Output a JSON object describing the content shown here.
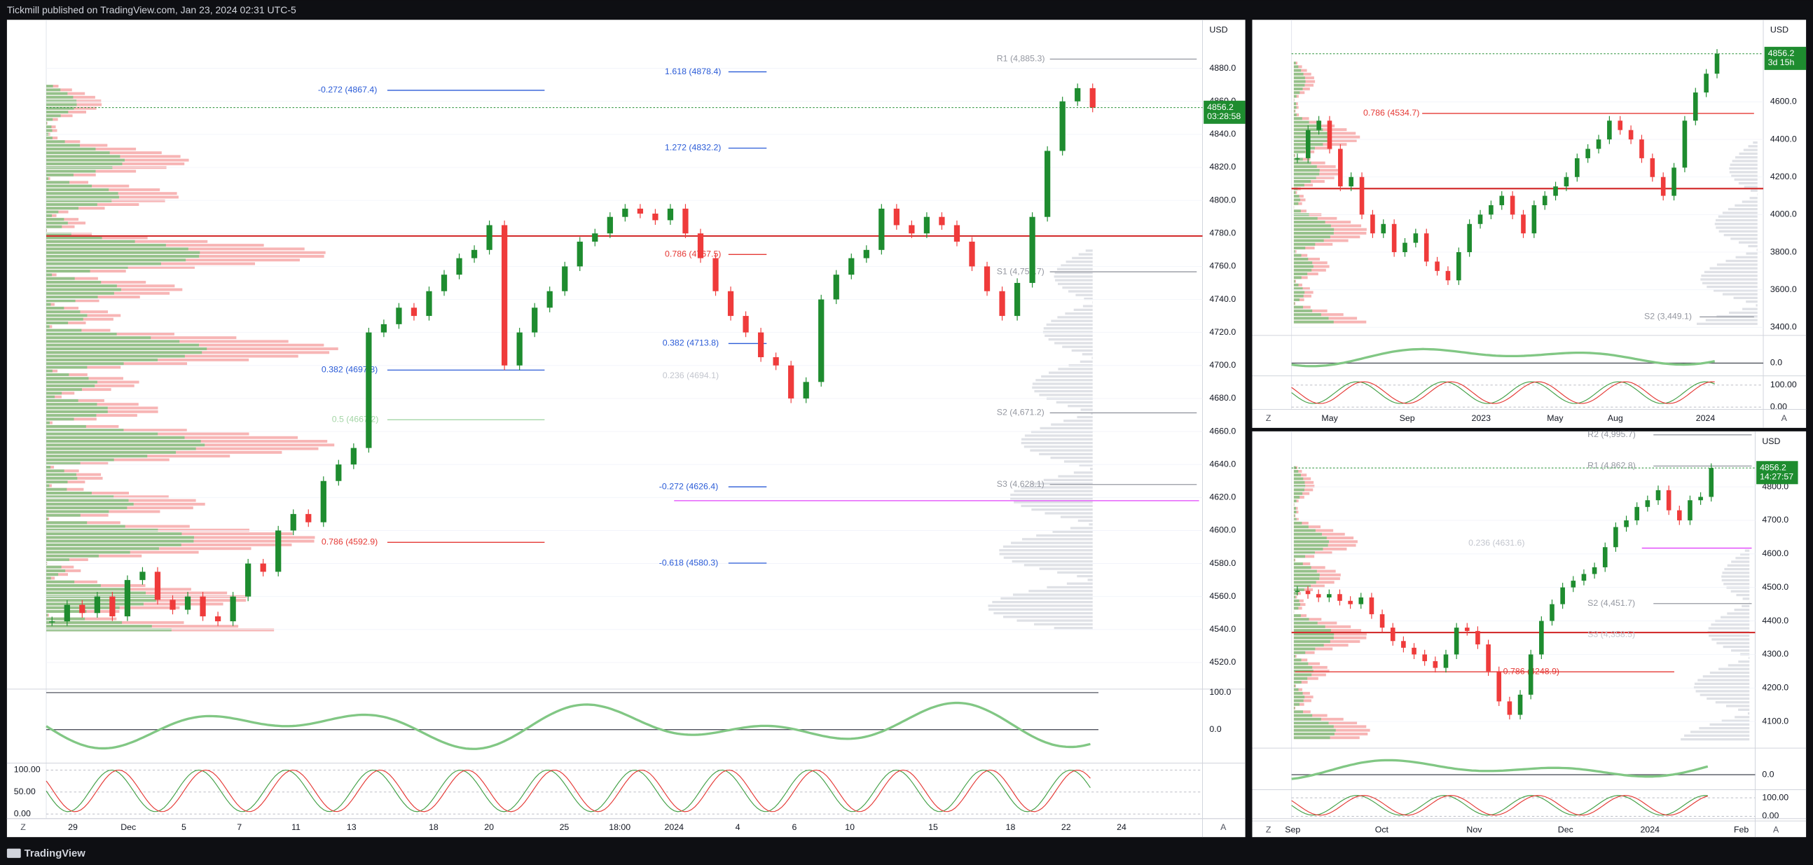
{
  "header": {
    "text": "Tickmill published on TradingView.com, Jan 23, 2024 02:31 UTC-5"
  },
  "footer": {
    "brand": "TradingView"
  },
  "colors": {
    "up": "#1e8c2f",
    "down": "#ef3b3b"
  },
  "panels": [
    {
      "currency": "USD",
      "price_label": 4856.2,
      "countdown": "03:28:58",
      "corner_left": "Z",
      "corner_right": "A",
      "price_ticks": [
        {
          "value": 4880,
          "label": "4880.0"
        },
        {
          "value": 4860,
          "label": "4860.0"
        },
        {
          "value": 4840,
          "label": "4840.0"
        },
        {
          "value": 4820,
          "label": "4820.0"
        },
        {
          "value": 4800,
          "label": "4800.0"
        },
        {
          "value": 4780,
          "label": "4780.0"
        },
        {
          "value": 4760,
          "label": "4760.0"
        },
        {
          "value": 4740,
          "label": "4740.0"
        },
        {
          "value": 4720,
          "label": "4720.0"
        },
        {
          "value": 4700,
          "label": "4700.0"
        },
        {
          "value": 4680,
          "label": "4680.0"
        },
        {
          "value": 4660,
          "label": "4660.0"
        },
        {
          "value": 4640,
          "label": "4640.0"
        },
        {
          "value": 4620,
          "label": "4620.0"
        },
        {
          "value": 4600,
          "label": "4600.0"
        },
        {
          "value": 4580,
          "label": "4580.0"
        },
        {
          "value": 4560,
          "label": "4560.0"
        },
        {
          "value": 4540,
          "label": "4540.0"
        },
        {
          "value": 4520,
          "label": "4520.0"
        }
      ],
      "osc1_ticks": [
        {
          "value": 100,
          "label": "100.0"
        },
        {
          "value": 0,
          "label": "0.0"
        }
      ],
      "osc2_ticks": [
        {
          "value": 100,
          "label": "100.00"
        },
        {
          "value": 50,
          "label": "50.00"
        },
        {
          "value": 0,
          "label": "0.00"
        }
      ],
      "time_labels": [
        "29",
        "Dec",
        "5",
        "7",
        "11",
        "13",
        "18",
        "20",
        "25",
        "18:00",
        "2024",
        "4",
        "6",
        "10",
        "15",
        "18",
        "22",
        "24"
      ],
      "levels": [
        {
          "label": "1.618 (4878.4)",
          "color": "#2a5bd7"
        },
        {
          "label": "-0.272 (4867.4)",
          "color": "#2a5bd7"
        },
        {
          "label": "1.272 (4832.2)",
          "color": "#2a5bd7"
        },
        {
          "label": "R1 (4,885.3)",
          "color": "#9598a1"
        },
        {
          "label": "0.786 (4767.5)",
          "color": "#e53935"
        },
        {
          "label": "S1 (4,756.7)",
          "color": "#9598a1"
        },
        {
          "label": "0.382 (4713.8)",
          "color": "#2a5bd7"
        },
        {
          "label": "0.382 (4697.8)",
          "color": "#2a5bd7"
        },
        {
          "label": "S2 (4,671.2)",
          "color": "#9598a1"
        },
        {
          "label": "-0.272 (4626.4)",
          "color": "#2a5bd7"
        },
        {
          "label": "S3 (4,628.1)",
          "color": "#9598a1"
        },
        {
          "label": "0.786 (4592.9)",
          "color": "#e53935"
        },
        {
          "label": "-0.618 (4580.3)",
          "color": "#2a5bd7"
        },
        {
          "label": "0.236 (4694.1)",
          "color": "#c3c6ce"
        },
        {
          "label": "0.5 (4667.2)",
          "color": "#a5d6a7"
        }
      ],
      "closes": [
        4545,
        4555,
        4550,
        4560,
        4548,
        4570,
        4575,
        4558,
        4552,
        4560,
        4548,
        4545,
        4560,
        4580,
        4575,
        4600,
        4610,
        4605,
        4630,
        4640,
        4650,
        4720,
        4725,
        4735,
        4730,
        4745,
        4755,
        4765,
        4770,
        4785,
        4700,
        4720,
        4735,
        4745,
        4760,
        4775,
        4780,
        4790,
        4795,
        4792,
        4788,
        4795,
        4780,
        4765,
        4745,
        4730,
        4720,
        4705,
        4700,
        4680,
        4690,
        4740,
        4755,
        4765,
        4770,
        4795,
        4785,
        4780,
        4790,
        4785,
        4775,
        4760,
        4745,
        4730,
        4750,
        4790,
        4830,
        4860,
        4868,
        4856.2
      ]
    },
    {
      "currency": "USD",
      "price_label": 4856.2,
      "countdown": "3d 15h",
      "corner_left": "Z",
      "corner_right": "A",
      "price_ticks": [
        {
          "value": 4600,
          "label": "4600.0"
        },
        {
          "value": 4400,
          "label": "4400.0"
        },
        {
          "value": 4200,
          "label": "4200.0"
        },
        {
          "value": 4000,
          "label": "4000.0"
        },
        {
          "value": 3800,
          "label": "3800.0"
        },
        {
          "value": 3600,
          "label": "3600.0"
        },
        {
          "value": 3400,
          "label": "3400.0"
        }
      ],
      "osc1_ticks": [
        {
          "value": 0,
          "label": "0.0"
        }
      ],
      "osc2_ticks": [
        {
          "value": 100,
          "label": "100.00"
        },
        {
          "value": 0,
          "label": "0.00"
        }
      ],
      "time_labels": [
        "May",
        "Sep",
        "2023",
        "May",
        "Aug",
        "2024"
      ],
      "levels": [
        {
          "label": "0.786 (4534.7)",
          "color": "#e53935"
        },
        {
          "label": "S2 (3,449.1)",
          "color": "#9598a1"
        }
      ],
      "closes": [
        4300,
        4450,
        4500,
        4350,
        4150,
        4200,
        4000,
        3900,
        3950,
        3800,
        3850,
        3900,
        3750,
        3700,
        3650,
        3800,
        3950,
        4000,
        4050,
        4100,
        4000,
        3900,
        4050,
        4100,
        4150,
        4200,
        4300,
        4350,
        4400,
        4500,
        4450,
        4400,
        4300,
        4200,
        4100,
        4250,
        4500,
        4650,
        4750,
        4856.2
      ]
    },
    {
      "currency": "USD",
      "price_label": 4856.2,
      "countdown": "14:27:57",
      "corner_left": "Z",
      "corner_right": "A",
      "price_ticks": [
        {
          "value": 4800,
          "label": "4800.0"
        },
        {
          "value": 4700,
          "label": "4700.0"
        },
        {
          "value": 4600,
          "label": "4600.0"
        },
        {
          "value": 4500,
          "label": "4500.0"
        },
        {
          "value": 4400,
          "label": "4400.0"
        },
        {
          "value": 4300,
          "label": "4300.0"
        },
        {
          "value": 4200,
          "label": "4200.0"
        },
        {
          "value": 4100,
          "label": "4100.0"
        }
      ],
      "osc1_ticks": [
        {
          "value": 0,
          "label": "0.0"
        }
      ],
      "osc2_ticks": [
        {
          "value": 100,
          "label": "100.00"
        },
        {
          "value": 0,
          "label": "0.00"
        }
      ],
      "time_labels": [
        "Sep",
        "Oct",
        "Nov",
        "Dec",
        "2024",
        "Feb"
      ],
      "levels": [
        {
          "label": "R2 (4,995.7)",
          "color": "#9598a1"
        },
        {
          "label": "R1 (4,862.8)",
          "color": "#9598a1"
        },
        {
          "label": "0.236 (4631.6)",
          "color": "#c3c6ce"
        },
        {
          "label": "S2 (4,451.7)",
          "color": "#9598a1"
        },
        {
          "label": "S3 (4,358.5)",
          "color": "#c3c6ce"
        },
        {
          "label": "0.786 (4248.9)",
          "color": "#e53935"
        }
      ],
      "closes": [
        4490,
        4480,
        4470,
        4480,
        4460,
        4450,
        4470,
        4420,
        4380,
        4340,
        4320,
        4300,
        4280,
        4260,
        4300,
        4380,
        4370,
        4330,
        4250,
        4160,
        4120,
        4180,
        4300,
        4400,
        4450,
        4500,
        4520,
        4540,
        4560,
        4620,
        4680,
        4700,
        4740,
        4760,
        4790,
        4730,
        4700,
        4760,
        4770,
        4856.2
      ]
    }
  ]
}
